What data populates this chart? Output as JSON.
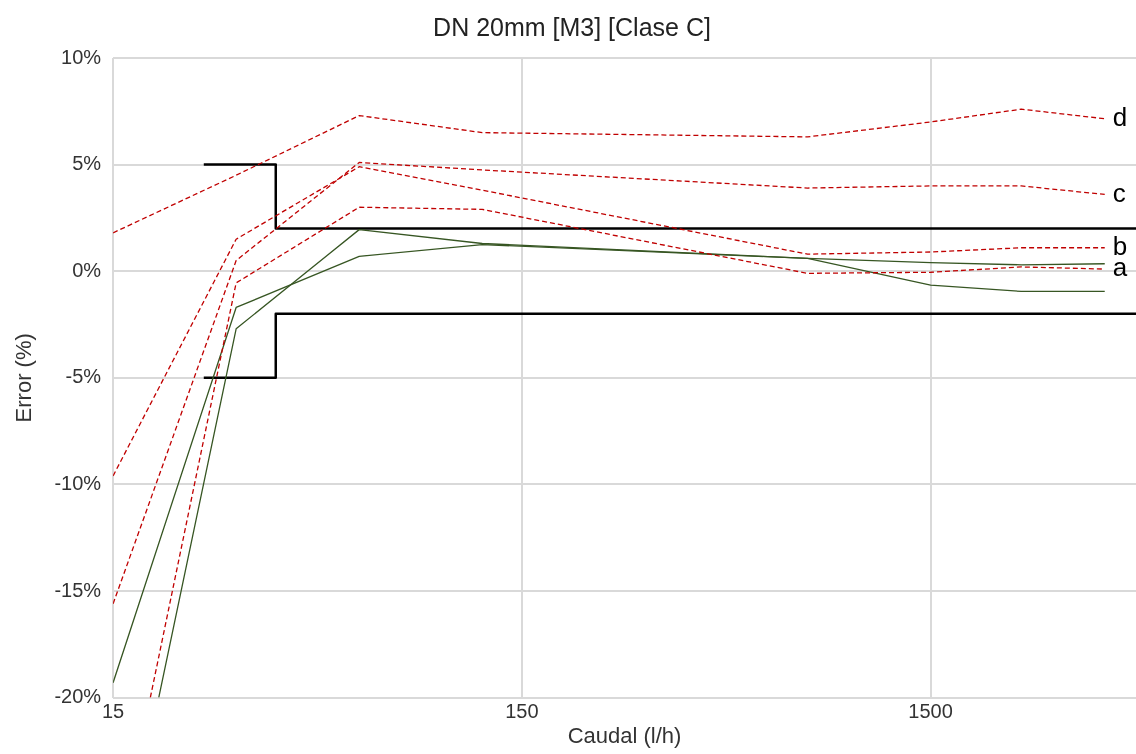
{
  "chart_data": {
    "type": "line",
    "title": "DN 20mm [M3] [Clase C]",
    "xlabel": "Caudal (l/h)",
    "ylabel": "Error (%)",
    "x": [
      15,
      30,
      60,
      120,
      750,
      1500,
      2500,
      4000
    ],
    "log": "x",
    "xlim": [
      15,
      4770
    ],
    "xticks": [
      15,
      150,
      1500
    ],
    "ylim": [
      -20,
      10
    ],
    "yticks": [
      {
        "value": -20,
        "label": "-20%"
      },
      {
        "value": -15,
        "label": "-15%"
      },
      {
        "value": -10,
        "label": "-10%"
      },
      {
        "value": -5,
        "label": "-5%"
      },
      {
        "value": 0,
        "label": "0%"
      },
      {
        "value": 5,
        "label": "5%"
      },
      {
        "value": 10,
        "label": "10%"
      }
    ],
    "grid": true,
    "legend": false,
    "marker": "none",
    "series": [
      {
        "name": "d",
        "color": "#c00000",
        "line_style": "dashed",
        "values": [
          1.8,
          4.5,
          7.3,
          6.5,
          6.3,
          7.0,
          7.6,
          7.15
        ]
      },
      {
        "name": "c",
        "color": "#c00000",
        "line_style": "dashed",
        "values": [
          -15.6,
          0.5,
          5.1,
          4.75,
          3.9,
          4.0,
          4.0,
          3.6
        ]
      },
      {
        "name": "b",
        "color": "#c00000",
        "line_style": "dashed",
        "values": [
          -9.6,
          1.5,
          4.9,
          3.8,
          0.8,
          0.9,
          1.1,
          1.1
        ]
      },
      {
        "name": "a",
        "color": "#c00000",
        "line_style": "dashed",
        "x": [
          18.5,
          30,
          60,
          120,
          750,
          1500,
          2500,
          4000
        ],
        "values": [
          -20,
          -0.55,
          3.0,
          2.9,
          -0.1,
          -0.05,
          0.2,
          0.1
        ]
      },
      {
        "color": "#375623",
        "line_style": "solid",
        "values": [
          -19.3,
          -1.7,
          0.7,
          1.25,
          0.6,
          0.4,
          0.3,
          0.35
        ]
      },
      {
        "color": "#375623",
        "line_style": "solid",
        "x": [
          19.4,
          30,
          60,
          120,
          750,
          1500,
          2500,
          4000
        ],
        "values": [
          -20,
          -2.7,
          1.95,
          1.3,
          0.6,
          -0.65,
          -0.95,
          -0.95
        ]
      },
      {
        "color": "#000000",
        "line_style": "solid",
        "x": [
          25,
          37.5,
          37.5,
          4770
        ],
        "values": [
          5,
          5,
          2,
          2
        ]
      },
      {
        "color": "#000000",
        "line_style": "solid",
        "x": [
          25,
          37.5,
          37.5,
          4770
        ],
        "values": [
          -5,
          -5,
          -2,
          -2
        ]
      }
    ]
  }
}
